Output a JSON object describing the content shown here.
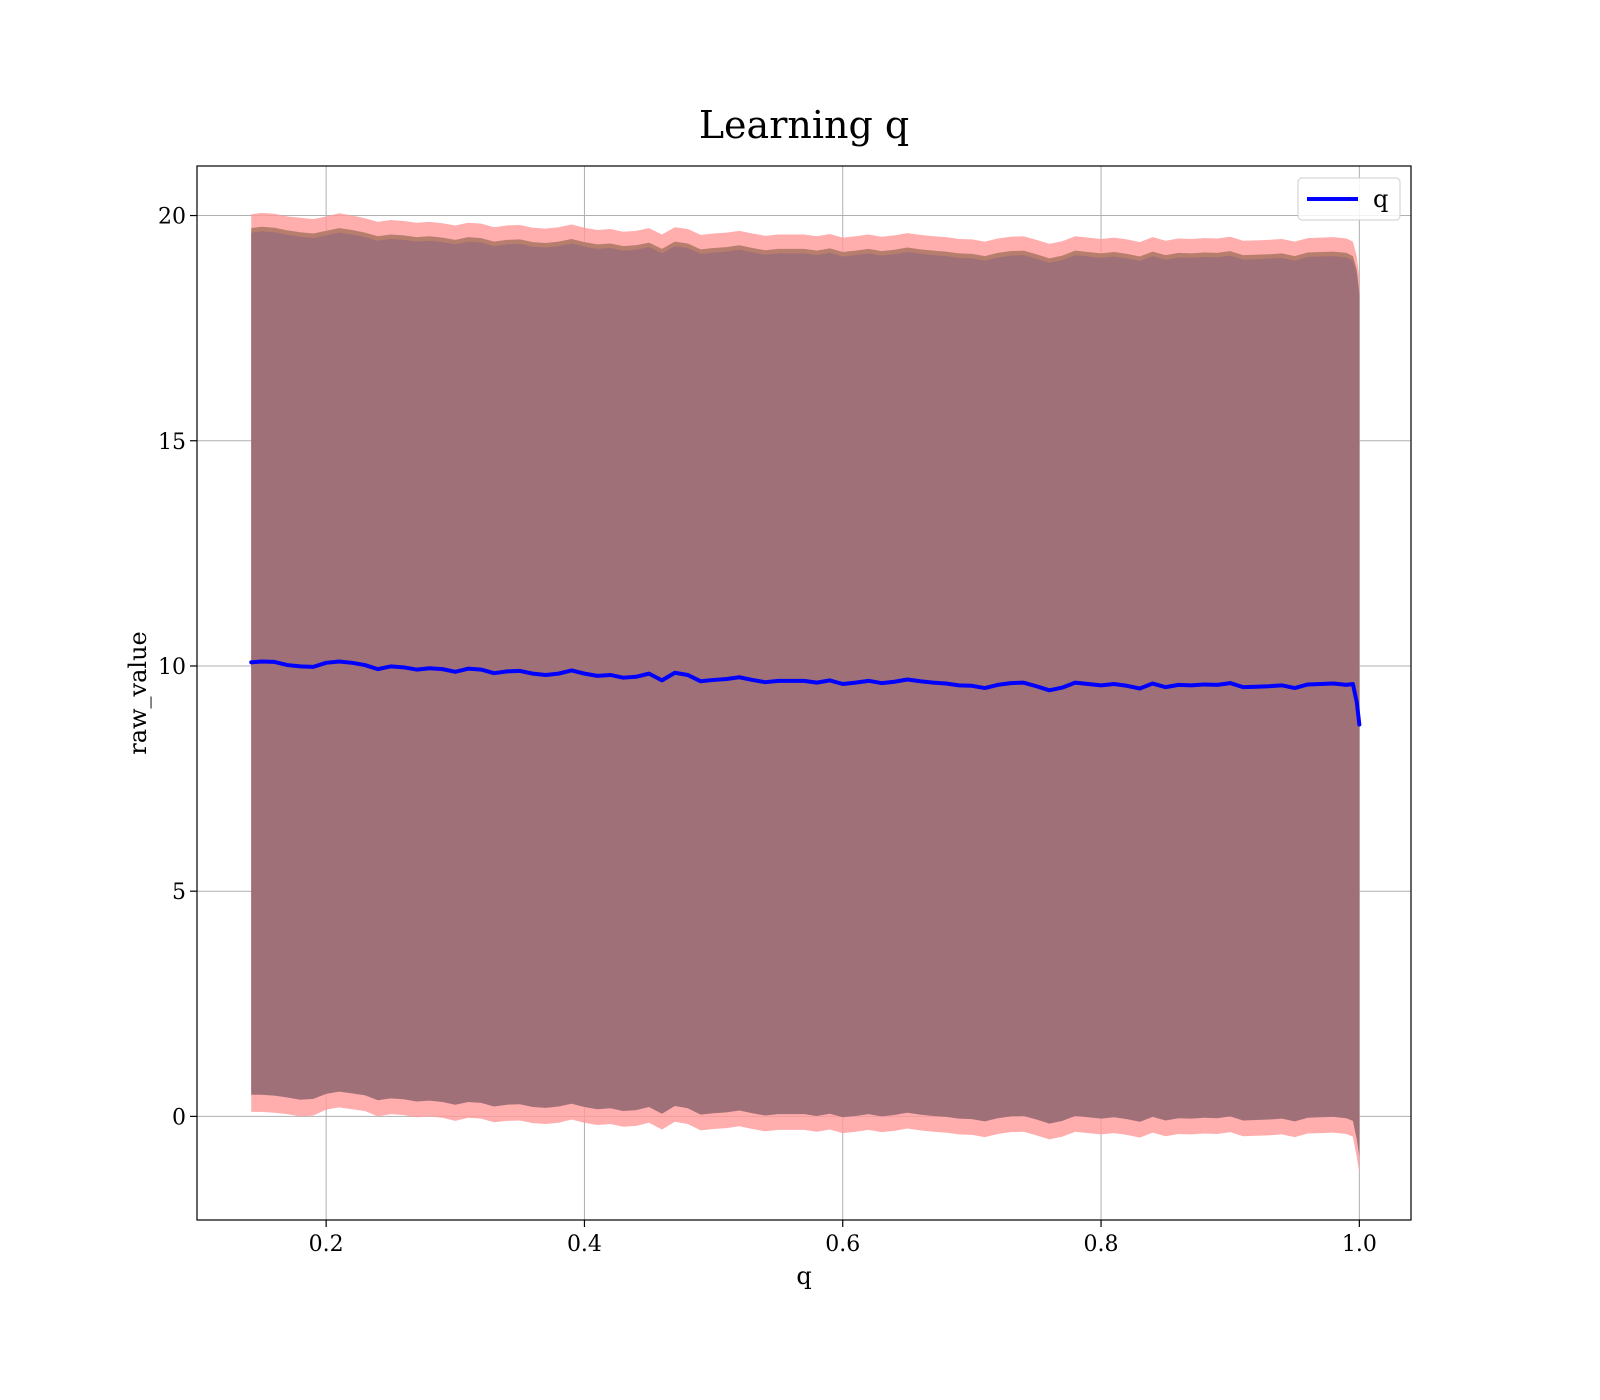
{
  "chart_data": {
    "type": "line",
    "title": "Learning q",
    "xlabel": "q",
    "ylabel": "raw_value",
    "xlim": [
      0.1,
      1.04
    ],
    "ylim": [
      -2.3,
      21.1
    ],
    "grid": true,
    "legend_position": "top-right",
    "x_ticks": [
      {
        "value": 0.2,
        "label": "0.2"
      },
      {
        "value": 0.4,
        "label": "0.4"
      },
      {
        "value": 0.6,
        "label": "0.6"
      },
      {
        "value": 0.8,
        "label": "0.8"
      },
      {
        "value": 1.0,
        "label": "1.0"
      }
    ],
    "y_ticks": [
      {
        "value": 0,
        "label": "0"
      },
      {
        "value": 5,
        "label": "5"
      },
      {
        "value": 10,
        "label": "10"
      },
      {
        "value": 15,
        "label": "15"
      },
      {
        "value": 20,
        "label": "20"
      }
    ],
    "colors": {
      "line": "#0000ff",
      "outer_band": "#ff9999",
      "middle_band": "#b77d6d",
      "inner_band": "#a07078",
      "grid": "#b0b0b0",
      "axes": "#000000"
    },
    "series": [
      {
        "name": "q",
        "x": [
          0.142,
          0.15,
          0.16,
          0.17,
          0.18,
          0.19,
          0.2,
          0.21,
          0.22,
          0.23,
          0.24,
          0.25,
          0.26,
          0.27,
          0.28,
          0.29,
          0.3,
          0.31,
          0.32,
          0.33,
          0.34,
          0.35,
          0.36,
          0.37,
          0.38,
          0.39,
          0.4,
          0.41,
          0.42,
          0.43,
          0.44,
          0.45,
          0.46,
          0.47,
          0.48,
          0.49,
          0.5,
          0.51,
          0.52,
          0.53,
          0.54,
          0.55,
          0.56,
          0.57,
          0.58,
          0.59,
          0.6,
          0.61,
          0.62,
          0.63,
          0.64,
          0.65,
          0.66,
          0.67,
          0.68,
          0.69,
          0.7,
          0.71,
          0.72,
          0.73,
          0.74,
          0.75,
          0.76,
          0.77,
          0.78,
          0.79,
          0.8,
          0.81,
          0.82,
          0.83,
          0.84,
          0.85,
          0.86,
          0.87,
          0.88,
          0.89,
          0.9,
          0.91,
          0.92,
          0.93,
          0.94,
          0.95,
          0.96,
          0.97,
          0.98,
          0.99,
          0.995,
          0.998,
          1.0
        ],
        "y": [
          10.08,
          10.1,
          10.09,
          10.02,
          9.99,
          9.98,
          10.07,
          10.1,
          10.07,
          10.02,
          9.93,
          9.99,
          9.97,
          9.92,
          9.95,
          9.93,
          9.87,
          9.94,
          9.92,
          9.84,
          9.88,
          9.89,
          9.83,
          9.8,
          9.83,
          9.9,
          9.83,
          9.78,
          9.8,
          9.74,
          9.76,
          9.83,
          9.68,
          9.85,
          9.8,
          9.66,
          9.69,
          9.71,
          9.75,
          9.69,
          9.64,
          9.67,
          9.67,
          9.67,
          9.63,
          9.68,
          9.6,
          9.63,
          9.67,
          9.62,
          9.65,
          9.7,
          9.66,
          9.63,
          9.61,
          9.57,
          9.56,
          9.51,
          9.58,
          9.62,
          9.63,
          9.55,
          9.46,
          9.52,
          9.63,
          9.6,
          9.57,
          9.6,
          9.56,
          9.5,
          9.61,
          9.53,
          9.58,
          9.57,
          9.59,
          9.58,
          9.62,
          9.53,
          9.54,
          9.55,
          9.57,
          9.51,
          9.59,
          9.6,
          9.61,
          9.58,
          9.6,
          9.2,
          8.7
        ]
      }
    ],
    "bands": [
      {
        "role": "outer",
        "lower": [
          0.1,
          0.1,
          0.08,
          0.05,
          0.0,
          0.02,
          0.15,
          0.2,
          0.16,
          0.12,
          0.0,
          0.05,
          0.03,
          -0.02,
          0.0,
          -0.03,
          -0.1,
          -0.03,
          -0.05,
          -0.13,
          -0.1,
          -0.09,
          -0.15,
          -0.17,
          -0.14,
          -0.07,
          -0.14,
          -0.19,
          -0.17,
          -0.23,
          -0.21,
          -0.14,
          -0.29,
          -0.12,
          -0.17,
          -0.31,
          -0.28,
          -0.26,
          -0.22,
          -0.28,
          -0.33,
          -0.3,
          -0.3,
          -0.3,
          -0.34,
          -0.29,
          -0.37,
          -0.34,
          -0.3,
          -0.35,
          -0.32,
          -0.27,
          -0.31,
          -0.34,
          -0.36,
          -0.4,
          -0.41,
          -0.46,
          -0.39,
          -0.35,
          -0.34,
          -0.42,
          -0.51,
          -0.45,
          -0.34,
          -0.37,
          -0.4,
          -0.37,
          -0.41,
          -0.47,
          -0.36,
          -0.44,
          -0.39,
          -0.4,
          -0.38,
          -0.39,
          -0.35,
          -0.44,
          -0.43,
          -0.42,
          -0.4,
          -0.46,
          -0.38,
          -0.37,
          -0.36,
          -0.39,
          -0.45,
          -0.9,
          -1.25
        ],
        "upper": [
          20.03,
          20.06,
          20.04,
          19.98,
          19.95,
          19.92,
          19.98,
          20.05,
          20.0,
          19.94,
          19.86,
          19.9,
          19.88,
          19.84,
          19.86,
          19.83,
          19.78,
          19.84,
          19.82,
          19.74,
          19.78,
          19.79,
          19.73,
          19.71,
          19.74,
          19.8,
          19.73,
          19.68,
          19.7,
          19.64,
          19.66,
          19.72,
          19.58,
          19.74,
          19.7,
          19.57,
          19.6,
          19.62,
          19.66,
          19.6,
          19.55,
          19.58,
          19.58,
          19.58,
          19.54,
          19.59,
          19.51,
          19.54,
          19.58,
          19.53,
          19.56,
          19.61,
          19.57,
          19.54,
          19.52,
          19.48,
          19.47,
          19.42,
          19.49,
          19.53,
          19.54,
          19.46,
          19.37,
          19.43,
          19.54,
          19.51,
          19.48,
          19.51,
          19.47,
          19.41,
          19.52,
          19.44,
          19.49,
          19.48,
          19.5,
          19.49,
          19.53,
          19.44,
          19.45,
          19.46,
          19.48,
          19.42,
          19.5,
          19.51,
          19.52,
          19.49,
          19.42,
          19.1,
          18.6
        ]
      },
      {
        "role": "middle",
        "lower": [
          0.58,
          0.58,
          0.56,
          0.52,
          0.47,
          0.49,
          0.6,
          0.65,
          0.61,
          0.57,
          0.46,
          0.5,
          0.48,
          0.43,
          0.45,
          0.42,
          0.36,
          0.42,
          0.4,
          0.32,
          0.36,
          0.37,
          0.31,
          0.29,
          0.32,
          0.38,
          0.31,
          0.26,
          0.28,
          0.22,
          0.24,
          0.31,
          0.16,
          0.33,
          0.28,
          0.14,
          0.17,
          0.19,
          0.23,
          0.17,
          0.12,
          0.15,
          0.15,
          0.15,
          0.11,
          0.16,
          0.08,
          0.11,
          0.15,
          0.1,
          0.13,
          0.18,
          0.14,
          0.11,
          0.09,
          0.05,
          0.04,
          -0.01,
          0.06,
          0.1,
          0.11,
          0.03,
          -0.06,
          0.0,
          0.11,
          0.08,
          0.05,
          0.08,
          0.04,
          -0.02,
          0.09,
          0.01,
          0.06,
          0.05,
          0.07,
          0.06,
          0.1,
          0.01,
          0.02,
          0.03,
          0.05,
          -0.01,
          0.07,
          0.08,
          0.09,
          0.06,
          0.0,
          -0.4,
          -0.8
        ],
        "upper": [
          19.72,
          19.75,
          19.73,
          19.67,
          19.63,
          19.6,
          19.66,
          19.72,
          19.68,
          19.62,
          19.54,
          19.58,
          19.56,
          19.52,
          19.54,
          19.51,
          19.46,
          19.52,
          19.5,
          19.42,
          19.46,
          19.47,
          19.41,
          19.39,
          19.42,
          19.48,
          19.41,
          19.36,
          19.38,
          19.32,
          19.34,
          19.4,
          19.26,
          19.42,
          19.38,
          19.25,
          19.28,
          19.3,
          19.34,
          19.28,
          19.23,
          19.26,
          19.26,
          19.26,
          19.22,
          19.27,
          19.19,
          19.22,
          19.26,
          19.21,
          19.24,
          19.29,
          19.25,
          19.22,
          19.2,
          19.16,
          19.15,
          19.1,
          19.17,
          19.21,
          19.22,
          19.14,
          19.05,
          19.11,
          19.22,
          19.19,
          19.16,
          19.19,
          19.15,
          19.09,
          19.2,
          19.12,
          19.17,
          19.16,
          19.18,
          19.17,
          19.21,
          19.12,
          19.13,
          19.14,
          19.16,
          19.1,
          19.18,
          19.19,
          19.2,
          19.17,
          19.1,
          18.8,
          18.3
        ]
      },
      {
        "role": "inner",
        "lower": [
          0.48,
          0.48,
          0.46,
          0.42,
          0.37,
          0.39,
          0.5,
          0.55,
          0.51,
          0.47,
          0.36,
          0.4,
          0.38,
          0.33,
          0.35,
          0.32,
          0.26,
          0.32,
          0.3,
          0.22,
          0.26,
          0.27,
          0.21,
          0.19,
          0.22,
          0.28,
          0.21,
          0.16,
          0.18,
          0.12,
          0.14,
          0.21,
          0.06,
          0.23,
          0.18,
          0.04,
          0.07,
          0.09,
          0.13,
          0.07,
          0.02,
          0.05,
          0.05,
          0.05,
          0.01,
          0.06,
          -0.02,
          0.01,
          0.05,
          0.0,
          0.03,
          0.08,
          0.04,
          0.01,
          -0.01,
          -0.05,
          -0.06,
          -0.11,
          -0.04,
          0.0,
          0.01,
          -0.07,
          -0.16,
          -0.1,
          0.01,
          -0.02,
          -0.05,
          -0.02,
          -0.06,
          -0.12,
          -0.01,
          -0.09,
          -0.04,
          -0.05,
          -0.03,
          -0.04,
          0.0,
          -0.09,
          -0.08,
          -0.07,
          -0.05,
          -0.11,
          -0.03,
          -0.02,
          -0.01,
          -0.04,
          -0.1,
          -0.5,
          -0.9
        ],
        "upper": [
          19.62,
          19.65,
          19.63,
          19.57,
          19.53,
          19.5,
          19.56,
          19.62,
          19.58,
          19.52,
          19.44,
          19.48,
          19.46,
          19.42,
          19.44,
          19.41,
          19.36,
          19.42,
          19.4,
          19.32,
          19.36,
          19.37,
          19.31,
          19.29,
          19.32,
          19.38,
          19.31,
          19.26,
          19.28,
          19.22,
          19.24,
          19.3,
          19.16,
          19.32,
          19.28,
          19.15,
          19.18,
          19.2,
          19.24,
          19.18,
          19.13,
          19.16,
          19.16,
          19.16,
          19.12,
          19.17,
          19.09,
          19.12,
          19.16,
          19.11,
          19.14,
          19.19,
          19.15,
          19.12,
          19.1,
          19.06,
          19.05,
          19.0,
          19.07,
          19.11,
          19.12,
          19.04,
          18.95,
          19.01,
          19.12,
          19.09,
          19.06,
          19.09,
          19.05,
          18.99,
          19.1,
          19.02,
          19.07,
          19.06,
          19.08,
          19.07,
          19.11,
          19.02,
          19.03,
          19.04,
          19.06,
          19.0,
          19.08,
          19.09,
          19.1,
          19.07,
          19.0,
          18.7,
          18.2
        ]
      }
    ]
  }
}
